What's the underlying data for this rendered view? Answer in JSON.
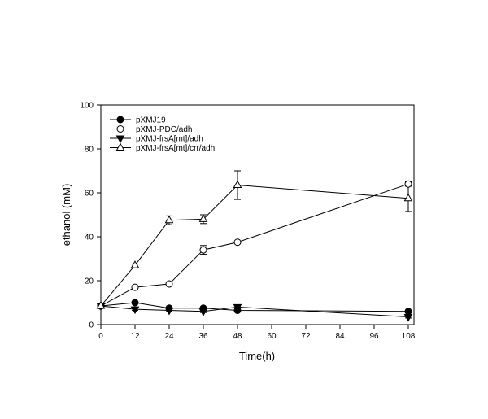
{
  "chart_data": {
    "type": "line",
    "title": "",
    "xlabel": "Time(h)",
    "ylabel": "ethanol (mM)",
    "xlim": [
      0,
      110
    ],
    "ylim": [
      0,
      100
    ],
    "xticks": [
      0,
      12,
      24,
      36,
      48,
      60,
      72,
      84,
      96,
      108
    ],
    "yticks": [
      0,
      20,
      40,
      60,
      80,
      100
    ],
    "grid": false,
    "legend": "top-left",
    "series": [
      {
        "name": "pXMJ19",
        "marker": "filled-circle",
        "x": [
          0,
          12,
          24,
          36,
          48,
          108
        ],
        "y": [
          8.5,
          10,
          7.5,
          7.5,
          6.5,
          6
        ],
        "err": [
          0.5,
          0.5,
          0.5,
          0.5,
          0.5,
          0.5
        ]
      },
      {
        "name": "pXMJ-PDC/adh",
        "marker": "open-circle",
        "x": [
          0,
          12,
          24,
          36,
          48,
          108
        ],
        "y": [
          8.5,
          17,
          18.5,
          34,
          37.5,
          64
        ],
        "err": [
          0.5,
          0.5,
          0.5,
          2,
          0.5,
          1
        ]
      },
      {
        "name": "pXMJ-frsA[mt]/adh",
        "marker": "filled-triangle-down",
        "x": [
          0,
          12,
          24,
          36,
          48,
          108
        ],
        "y": [
          8.5,
          7,
          6.5,
          6,
          8,
          3.5
        ],
        "err": [
          0.5,
          0.5,
          0.5,
          0.5,
          0.5,
          0.5
        ]
      },
      {
        "name": "pXMJ-frsA[mt]/crr/adh",
        "marker": "open-triangle-up",
        "x": [
          0,
          12,
          24,
          36,
          48,
          108
        ],
        "y": [
          8.5,
          27,
          47.5,
          48,
          63.5,
          57.5
        ],
        "err": [
          0.5,
          0.5,
          2,
          2,
          6.5,
          6
        ]
      }
    ]
  }
}
